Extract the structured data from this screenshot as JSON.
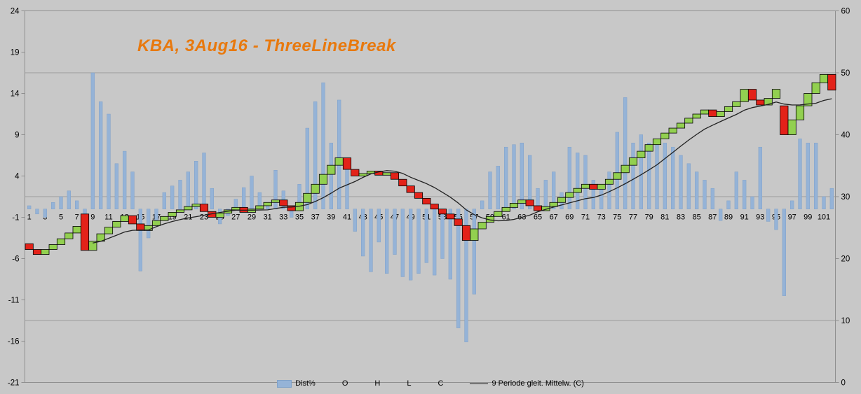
{
  "title": "KBA, 3Aug16 - ThreeLineBreak",
  "colors": {
    "background": "#c8c8c8",
    "title": "#e8790e",
    "bar": "#95b3d7",
    "bar_border": "#80a2c9",
    "up": "#92d050",
    "down": "#e32219",
    "brick_border": "#000000",
    "grid": "#9b9b9b",
    "axis": "#8f8f8f",
    "ma_line": "#222222",
    "text": "#000000"
  },
  "legend": {
    "items": [
      {
        "label": "Dist%",
        "swatch": "bar"
      },
      {
        "label": "O",
        "swatch": "none"
      },
      {
        "label": "H",
        "swatch": "none"
      },
      {
        "label": "L",
        "swatch": "none"
      },
      {
        "label": "C",
        "swatch": "none"
      },
      {
        "label": "9 Periode gleit. Mittelw. (C)",
        "swatch": "line"
      }
    ]
  },
  "chart_data": {
    "type": "combo",
    "subtype": "three-line-break bricks + distance bars + moving average line",
    "title": "KBA, 3Aug16 - ThreeLineBreak",
    "x_categories_count": 102,
    "x_tick_labels": [
      1,
      3,
      5,
      7,
      9,
      11,
      13,
      15,
      17,
      19,
      21,
      23,
      25,
      27,
      29,
      31,
      33,
      35,
      37,
      39,
      41,
      43,
      45,
      47,
      49,
      51,
      53,
      55,
      57,
      59,
      61,
      63,
      65,
      67,
      69,
      71,
      73,
      75,
      77,
      79,
      81,
      83,
      85,
      87,
      89,
      91,
      93,
      95,
      97,
      99,
      101
    ],
    "axis_left": {
      "min": -21,
      "max": 24,
      "ticks": [
        24,
        19,
        14,
        9,
        4,
        -1,
        -6,
        -11,
        -16,
        -21
      ]
    },
    "axis_right": {
      "min": 0,
      "max": 60,
      "ticks": [
        60,
        50,
        40,
        30,
        20,
        10,
        0
      ]
    },
    "gridlines_at_right_values": [
      50,
      30,
      10
    ],
    "legend_labels": [
      "Dist%",
      "O",
      "H",
      "L",
      "C",
      "9 Periode gleit. Mittelw. (C)"
    ],
    "series": [
      {
        "name": "Dist%",
        "type": "bar",
        "axis": "left",
        "values": [
          0.4,
          -0.6,
          -1.0,
          0.8,
          1.5,
          2.2,
          1.0,
          -2.0,
          16.5,
          13.0,
          11.5,
          5.5,
          7.0,
          4.5,
          -7.5,
          -3.5,
          -1.5,
          2.0,
          2.8,
          3.5,
          4.5,
          5.8,
          6.8,
          2.5,
          -1.8,
          -0.8,
          1.2,
          2.6,
          4.0,
          2.0,
          0.8,
          4.7,
          2.2,
          -1.0,
          3.0,
          9.8,
          13.0,
          15.3,
          8.0,
          13.2,
          6.0,
          -2.7,
          -5.7,
          -7.6,
          -4.0,
          -7.8,
          -5.5,
          -8.2,
          -8.6,
          -7.8,
          -6.5,
          -8.0,
          -6.0,
          -8.5,
          -14.4,
          -16.1,
          -10.3,
          1.0,
          4.5,
          5.2,
          7.5,
          7.8,
          8.0,
          6.5,
          2.5,
          3.5,
          4.5,
          2.0,
          7.5,
          6.8,
          6.5,
          3.5,
          2.5,
          4.5,
          9.3,
          13.5,
          8.0,
          9.0,
          8.0,
          8.2,
          8.0,
          7.5,
          6.5,
          5.5,
          4.5,
          3.5,
          2.5,
          -1.4,
          1.0,
          4.5,
          3.5,
          1.5,
          7.5,
          -1.5,
          -2.5,
          -10.5,
          1.0,
          8.5,
          8.0,
          8.0,
          1.5,
          2.5
        ]
      },
      {
        "name": "ThreeLineBreak (O/H/L/C bricks)",
        "type": "bricks",
        "axis": "left",
        "open": [
          -4.2,
          -4.9,
          -5.5,
          -4.9,
          -4.3,
          -3.6,
          -2.9,
          -0.6,
          -5.0,
          -3.9,
          -3.0,
          -2.2,
          -1.5,
          -0.8,
          -1.8,
          -2.6,
          -2.0,
          -1.4,
          -0.9,
          -0.4,
          -0.1,
          0.3,
          0.6,
          -0.3,
          -1.0,
          -0.5,
          -0.1,
          0.2,
          -0.4,
          0.0,
          0.4,
          0.8,
          1.1,
          0.4,
          -0.2,
          0.8,
          1.9,
          3.0,
          4.2,
          5.3,
          6.2,
          4.8,
          4.0,
          4.3,
          4.6,
          4.1,
          4.4,
          3.6,
          2.8,
          2.0,
          1.3,
          0.6,
          0.0,
          -0.6,
          -1.2,
          -2.0,
          -3.8,
          -2.4,
          -1.6,
          -0.9,
          -0.3,
          0.2,
          0.7,
          1.1,
          0.4,
          -0.2,
          0.3,
          0.8,
          1.4,
          2.0,
          2.5,
          3.0,
          2.4,
          3.0,
          3.6,
          4.4,
          5.3,
          6.2,
          7.0,
          7.8,
          8.5,
          9.2,
          9.8,
          10.4,
          11.0,
          11.5,
          12.0,
          11.2,
          11.8,
          12.4,
          13.0,
          14.5,
          13.2,
          12.6,
          13.4,
          12.5,
          9.0,
          10.8,
          12.5,
          14.0,
          15.3,
          16.3
        ],
        "close": [
          -4.9,
          -5.5,
          -4.9,
          -4.3,
          -3.6,
          -2.9,
          -2.1,
          -5.0,
          -3.9,
          -3.0,
          -2.2,
          -1.5,
          -0.8,
          -1.8,
          -2.6,
          -2.0,
          -1.4,
          -0.9,
          -0.4,
          -0.1,
          0.3,
          0.6,
          -0.3,
          -1.0,
          -0.5,
          -0.1,
          0.2,
          -0.4,
          0.0,
          0.4,
          0.8,
          1.1,
          0.4,
          -0.2,
          0.8,
          1.9,
          3.0,
          4.2,
          5.3,
          6.2,
          4.8,
          4.0,
          4.3,
          4.6,
          4.1,
          4.4,
          3.6,
          2.8,
          2.0,
          1.3,
          0.6,
          0.0,
          -0.6,
          -1.2,
          -2.0,
          -3.8,
          -2.4,
          -1.6,
          -0.9,
          -0.3,
          0.2,
          0.7,
          1.1,
          0.4,
          -0.2,
          0.3,
          0.8,
          1.4,
          2.0,
          2.5,
          3.0,
          2.4,
          3.0,
          3.6,
          4.4,
          5.3,
          6.2,
          7.0,
          7.8,
          8.5,
          9.2,
          9.8,
          10.4,
          11.0,
          11.5,
          12.0,
          11.2,
          11.8,
          12.4,
          13.0,
          14.5,
          13.2,
          12.6,
          13.4,
          14.5,
          9.0,
          10.8,
          12.5,
          14.0,
          15.3,
          16.3,
          14.4
        ]
      },
      {
        "name": "9 Periode gleit. Mittelw. (C)",
        "type": "line",
        "axis": "left",
        "derived_from": "9-period simple moving average of brick close values"
      }
    ]
  }
}
